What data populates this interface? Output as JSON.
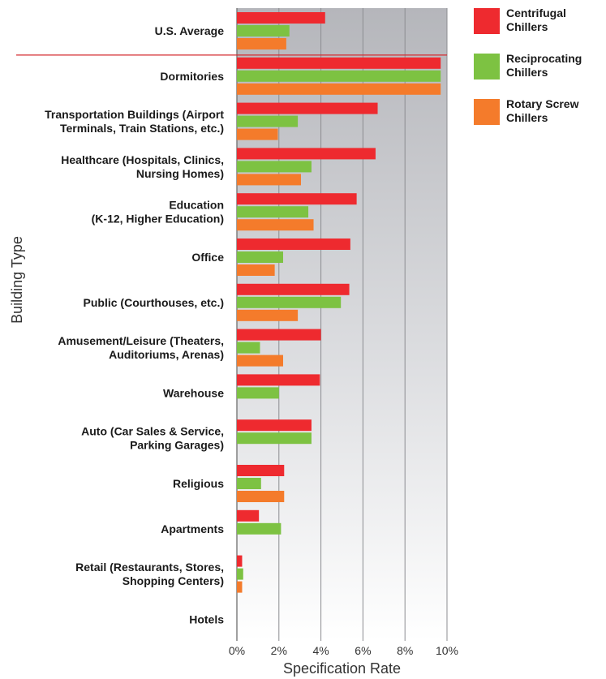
{
  "chart_data": {
    "type": "bar",
    "orientation": "horizontal",
    "xlabel": "Specification Rate",
    "ylabel": "Building Type",
    "xlim": [
      0,
      10
    ],
    "xticks": [
      "0%",
      "2%",
      "4%",
      "6%",
      "8%",
      "10%"
    ],
    "grid": true,
    "legend_position": "top-right",
    "categories": [
      {
        "name": "U.S. Average",
        "lines": [
          "U.S. Average"
        ]
      },
      {
        "name": "Dormitories",
        "lines": [
          "Dormitories"
        ]
      },
      {
        "name": "Transportation Buildings (Airport Terminals, Train Stations, etc.)",
        "lines": [
          "Transportation Buildings (Airport",
          "Terminals, Train Stations, etc.)"
        ]
      },
      {
        "name": "Healthcare (Hospitals, Clinics, Nursing Homes)",
        "lines": [
          "Healthcare (Hospitals, Clinics,",
          "Nursing Homes)"
        ]
      },
      {
        "name": "Education (K-12, Higher Education)",
        "lines": [
          "Education",
          "(K-12, Higher Education)"
        ]
      },
      {
        "name": "Office",
        "lines": [
          "Office"
        ]
      },
      {
        "name": "Public (Courthouses, etc.)",
        "lines": [
          "Public (Courthouses, etc.)"
        ]
      },
      {
        "name": "Amusement/Leisure (Theaters, Auditoriums, Arenas)",
        "lines": [
          "Amusement/Leisure (Theaters,",
          "Auditoriums, Arenas)"
        ]
      },
      {
        "name": "Warehouse",
        "lines": [
          "Warehouse"
        ]
      },
      {
        "name": "Auto (Car Sales & Service, Parking Garages)",
        "lines": [
          "Auto (Car Sales & Service,",
          "Parking Garages)"
        ]
      },
      {
        "name": "Religious",
        "lines": [
          "Religious"
        ]
      },
      {
        "name": "Apartments",
        "lines": [
          "Apartments"
        ]
      },
      {
        "name": "Retail (Restaurants, Stores, Shopping Centers)",
        "lines": [
          "Retail (Restaurants, Stores,",
          "Shopping Centers)"
        ]
      },
      {
        "name": "Hotels",
        "lines": [
          "Hotels"
        ]
      }
    ],
    "series": [
      {
        "name": "Centrifugal Chillers",
        "color": "#ee2a2f",
        "values": [
          4.2,
          9.7,
          6.7,
          6.6,
          5.7,
          5.4,
          5.35,
          4.0,
          3.95,
          3.55,
          2.25,
          1.05,
          0.25,
          0
        ]
      },
      {
        "name": "Reciprocating Chillers",
        "color": "#7dc242",
        "values": [
          2.5,
          9.7,
          2.9,
          3.55,
          3.4,
          2.2,
          4.95,
          1.1,
          2.0,
          3.55,
          1.15,
          2.1,
          0.3,
          0
        ]
      },
      {
        "name": "Rotary Screw Chillers",
        "color": "#f47b2b",
        "values": [
          2.35,
          9.7,
          1.95,
          3.05,
          3.65,
          1.8,
          2.9,
          2.2,
          0,
          0,
          2.25,
          0,
          0.25,
          0
        ]
      }
    ]
  },
  "legend": [
    {
      "label": "Centrifugal\nChillers",
      "color": "#ee2a2f"
    },
    {
      "label": "Reciprocating\nChillers",
      "color": "#7dc242"
    },
    {
      "label": "Rotary Screw\nChillers",
      "color": "#f47b2b"
    }
  ]
}
